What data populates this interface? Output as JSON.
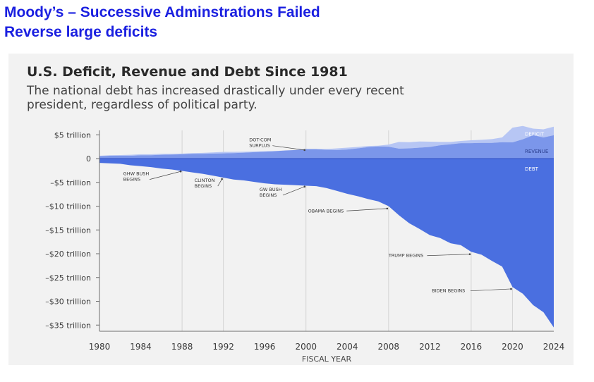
{
  "slide": {
    "title_line1": "Moody’s – Successive Adminstrations Failed",
    "title_line2": "Reverse large deficits"
  },
  "colors": {
    "title": "#1a1fe0",
    "debt": "#4a6fe0",
    "revenue": "#7b96ea",
    "deficit": "#b7c6f4",
    "panel": "#f2f2f2"
  },
  "chart_data": {
    "type": "area",
    "title": "U.S. Deficit, Revenue and Debt Since 1981",
    "subtitle_line1": "The national debt has increased drastically under every recent",
    "subtitle_line2": "president, regardless of political party.",
    "xlabel": "FISCAL YEAR",
    "ylabel": "",
    "xlim": [
      1980,
      2024
    ],
    "ylim": [
      -36,
      5
    ],
    "x_ticks": [
      1980,
      1984,
      1988,
      1992,
      1996,
      2000,
      2004,
      2008,
      2012,
      2016,
      2020,
      2024
    ],
    "y_ticks": [
      {
        "value": 5,
        "label": "$5 trillion"
      },
      {
        "value": 0,
        "label": "0"
      },
      {
        "value": -5,
        "label": "–$5 trillion"
      },
      {
        "value": -10,
        "label": "–$10 trillion"
      },
      {
        "value": -15,
        "label": "–$15 trillion"
      },
      {
        "value": -20,
        "label": "–$20 trillion"
      },
      {
        "value": -25,
        "label": "–$25 trillion"
      },
      {
        "value": -30,
        "label": "–$30 trillion"
      },
      {
        "value": -35,
        "label": "–$35 trillion"
      }
    ],
    "vertical_grid_years": [
      1988,
      1992,
      2000,
      2008,
      2016,
      2020
    ],
    "x": [
      1980,
      1981,
      1982,
      1983,
      1984,
      1985,
      1986,
      1987,
      1988,
      1989,
      1990,
      1991,
      1992,
      1993,
      1994,
      1995,
      1996,
      1997,
      1998,
      1999,
      2000,
      2001,
      2002,
      2003,
      2004,
      2005,
      2006,
      2007,
      2008,
      2009,
      2010,
      2011,
      2012,
      2013,
      2014,
      2015,
      2016,
      2017,
      2018,
      2019,
      2020,
      2021,
      2022,
      2023,
      2024
    ],
    "series": [
      {
        "name": "REVENUE",
        "values": [
          0.5,
          0.6,
          0.6,
          0.6,
          0.7,
          0.7,
          0.8,
          0.85,
          0.9,
          1.0,
          1.0,
          1.05,
          1.1,
          1.15,
          1.25,
          1.35,
          1.45,
          1.55,
          1.7,
          1.8,
          2.0,
          2.0,
          1.85,
          1.8,
          1.9,
          2.15,
          2.4,
          2.55,
          2.5,
          2.1,
          2.15,
          2.3,
          2.45,
          2.8,
          3.0,
          3.25,
          3.25,
          3.3,
          3.3,
          3.45,
          3.4,
          4.05,
          4.9,
          4.45,
          4.9
        ]
      },
      {
        "name": "DEFICIT",
        "values": [
          0.1,
          0.1,
          0.15,
          0.2,
          0.2,
          0.2,
          0.2,
          0.15,
          0.15,
          0.15,
          0.2,
          0.25,
          0.3,
          0.25,
          0.2,
          0.15,
          0.1,
          0.05,
          0,
          0,
          0,
          0,
          0.15,
          0.35,
          0.4,
          0.3,
          0.25,
          0.15,
          0.45,
          1.4,
          1.3,
          1.3,
          1.1,
          0.7,
          0.5,
          0.45,
          0.6,
          0.65,
          0.8,
          1.0,
          3.1,
          2.8,
          1.4,
          1.7,
          1.8
        ]
      },
      {
        "name": "DEBT",
        "values": [
          -0.9,
          -1.0,
          -1.1,
          -1.4,
          -1.6,
          -1.8,
          -2.1,
          -2.3,
          -2.6,
          -2.9,
          -3.2,
          -3.6,
          -4.0,
          -4.4,
          -4.6,
          -4.9,
          -5.2,
          -5.4,
          -5.5,
          -5.6,
          -5.7,
          -5.8,
          -6.2,
          -6.8,
          -7.4,
          -7.9,
          -8.5,
          -9.0,
          -10.0,
          -11.9,
          -13.6,
          -14.8,
          -16.1,
          -16.7,
          -17.8,
          -18.2,
          -19.6,
          -20.2,
          -21.5,
          -22.7,
          -27.0,
          -28.4,
          -30.8,
          -32.3,
          -35.5
        ]
      }
    ],
    "series_labels": [
      {
        "name": "DEFICIT",
        "x": 2021.2,
        "y": 4.8
      },
      {
        "name": "REVENUE",
        "x": 2021.2,
        "y": 1.2
      },
      {
        "name": "DEBT",
        "x": 2021.2,
        "y": -2.5
      }
    ],
    "annotations": [
      {
        "lines": [
          "DOT-COM",
          "SURPLUS"
        ],
        "year": 2000,
        "value": 1.8,
        "text_x": 1994.5,
        "text_y": 3.6
      },
      {
        "lines": [
          "GHW BUSH",
          "BEGINS"
        ],
        "year": 1988,
        "value": -2.7,
        "text_x": 1982.3,
        "text_y": -3.5
      },
      {
        "lines": [
          "CLINTON",
          "BEGINS"
        ],
        "year": 1992,
        "value": -4.3,
        "text_x": 1989.2,
        "text_y": -4.9
      },
      {
        "lines": [
          "GW BUSH",
          "BEGINS"
        ],
        "year": 2000,
        "value": -5.9,
        "text_x": 1995.5,
        "text_y": -6.8
      },
      {
        "lines": [
          "OBAMA BEGINS"
        ],
        "year": 2008,
        "value": -10.5,
        "text_x": 2000.2,
        "text_y": -11.3
      },
      {
        "lines": [
          "TRUMP BEGINS"
        ],
        "year": 2016,
        "value": -20.1,
        "text_x": 2008.0,
        "text_y": -20.7
      },
      {
        "lines": [
          "BIDEN BEGINS"
        ],
        "year": 2020,
        "value": -27.4,
        "text_x": 2012.2,
        "text_y": -28.1
      }
    ]
  }
}
